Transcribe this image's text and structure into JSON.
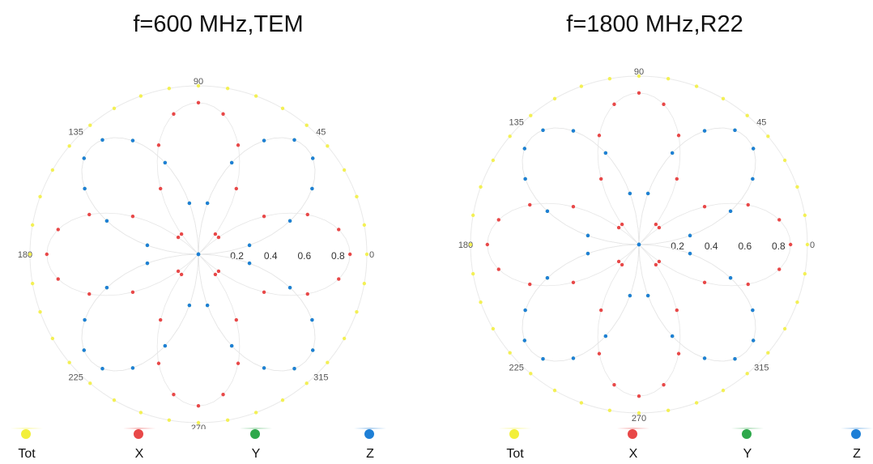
{
  "colors": {
    "Tot": "#f2ef3a",
    "X": "#e84848",
    "Y": "#2ea84b",
    "Z": "#1e7fd6"
  },
  "chart_data": [
    {
      "type": "polar-scatter",
      "title": "f=600 MHz,TEM",
      "angle_ticks": [
        "0",
        "45",
        "90",
        "135",
        "180",
        "225",
        "270",
        "315"
      ],
      "radial_ticks": [
        "0.2",
        "0.4",
        "0.6",
        "0.8"
      ],
      "rlim": [
        0,
        1
      ],
      "legend": [
        "Tot",
        "X",
        "Y",
        "Z"
      ],
      "series": [
        {
          "name": "Tot",
          "shape": "circle",
          "r": 1.0
        },
        {
          "name": "X",
          "shape": "lobes",
          "phase_deg": 90,
          "peak": 0.9
        },
        {
          "name": "Y",
          "shape": "lobes",
          "phase_deg": 135,
          "peak": 0.9
        },
        {
          "name": "Z",
          "shape": "lobes",
          "phase_deg": 45,
          "peak": 0.9
        }
      ]
    },
    {
      "type": "polar-scatter",
      "title": "f=1800 MHz,R22",
      "angle_ticks": [
        "0",
        "45",
        "90",
        "135",
        "180",
        "225",
        "270",
        "315"
      ],
      "radial_ticks": [
        "0.2",
        "0.4",
        "0.6",
        "0.8"
      ],
      "rlim": [
        0,
        1
      ],
      "legend": [
        "Tot",
        "X",
        "Y",
        "Z"
      ],
      "series": [
        {
          "name": "Tot",
          "shape": "circle",
          "r": 1.0
        },
        {
          "name": "X",
          "shape": "lobes",
          "phase_deg": 90,
          "peak": 0.9
        },
        {
          "name": "Y",
          "shape": "lobes",
          "phase_deg": 135,
          "peak": 0.9
        },
        {
          "name": "Z",
          "shape": "lobes",
          "phase_deg": 45,
          "peak": 0.9
        }
      ]
    }
  ]
}
